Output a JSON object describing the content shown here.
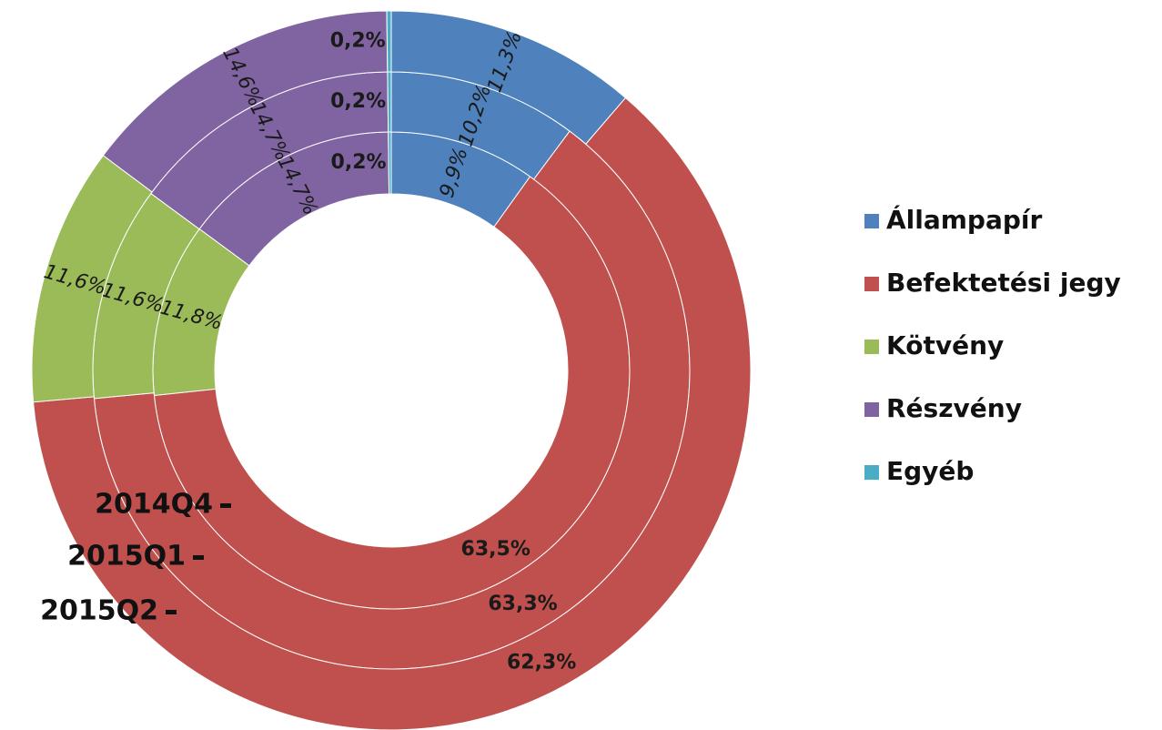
{
  "chart_data": {
    "type": "donut",
    "categories": [
      "Állampapír",
      "Befektetési jegy",
      "Kötvény",
      "Részvény",
      "Egyéb"
    ],
    "colors": [
      "#4f81bd",
      "#c0504d",
      "#9bbb59",
      "#8064a2",
      "#4bacc6"
    ],
    "series": [
      {
        "name": "2014Q4",
        "values": [
          9.9,
          63.5,
          11.8,
          14.7,
          0.2
        ],
        "value_labels": [
          "9,9%",
          "63,5%",
          "11,8%",
          "14,7%",
          "0,2%"
        ]
      },
      {
        "name": "2015Q1",
        "values": [
          10.2,
          63.3,
          11.6,
          14.7,
          0.2
        ],
        "value_labels": [
          "10,2%",
          "63,3%",
          "11,6%",
          "14,7%",
          "0,2%"
        ]
      },
      {
        "name": "2015Q2",
        "values": [
          11.3,
          62.3,
          11.6,
          14.6,
          0.2
        ],
        "value_labels": [
          "11,3%",
          "62,3%",
          "11,6%",
          "14,6%",
          "0,2%"
        ]
      }
    ]
  }
}
